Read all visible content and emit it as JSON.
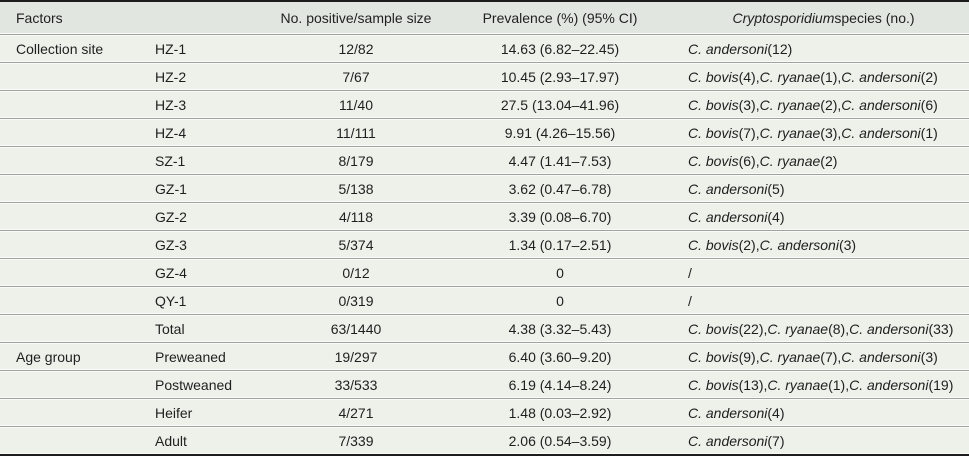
{
  "table": {
    "header": {
      "factors": "Factors",
      "no_positive": "No. positive/sample size",
      "prevalence": "Prevalence (%) (95% CI)",
      "species_italic": "Cryptosporidium",
      "species_rest": " species (no.)"
    },
    "rows": [
      {
        "factor": "Collection site",
        "level": "HZ-1",
        "positive": "12/82",
        "prevalence": "14.63 (6.82–22.45)",
        "species": "C. andersoni (12)"
      },
      {
        "factor": "",
        "level": "HZ-2",
        "positive": "7/67",
        "prevalence": "10.45 (2.93–17.97)",
        "species": "C. bovis (4), C. ryanae (1), C. andersoni (2)"
      },
      {
        "factor": "",
        "level": "HZ-3",
        "positive": "11/40",
        "prevalence": "27.5 (13.04–41.96)",
        "species": "C. bovis (3), C. ryanae (2), C. andersoni (6)"
      },
      {
        "factor": "",
        "level": "HZ-4",
        "positive": "11/111",
        "prevalence": "9.91 (4.26–15.56)",
        "species": "C. bovis (7), C. ryanae (3), C. andersoni (1)"
      },
      {
        "factor": "",
        "level": "SZ-1",
        "positive": "8/179",
        "prevalence": "4.47 (1.41–7.53)",
        "species": "C. bovis (6), C. ryanae (2)"
      },
      {
        "factor": "",
        "level": "GZ-1",
        "positive": "5/138",
        "prevalence": "3.62 (0.47–6.78)",
        "species": "C. andersoni (5)"
      },
      {
        "factor": "",
        "level": "GZ-2",
        "positive": "4/118",
        "prevalence": "3.39 (0.08–6.70)",
        "species": "C. andersoni (4)"
      },
      {
        "factor": "",
        "level": "GZ-3",
        "positive": "5/374",
        "prevalence": "1.34 (0.17–2.51)",
        "species": "C. bovis (2), C. andersoni (3)"
      },
      {
        "factor": "",
        "level": "GZ-4",
        "positive": "0/12",
        "prevalence": "0",
        "species": "/"
      },
      {
        "factor": "",
        "level": "QY-1",
        "positive": "0/319",
        "prevalence": "0",
        "species": "/"
      },
      {
        "factor": "",
        "level": "Total",
        "positive": "63/1440",
        "prevalence": "4.38 (3.32–5.43)",
        "species": "C. bovis (22), C. ryanae (8), C. andersoni (33)"
      },
      {
        "factor": "Age group",
        "level": "Preweaned",
        "positive": "19/297",
        "prevalence": "6.40 (3.60–9.20)",
        "species": "C. bovis (9), C. ryanae (7), C. andersoni (3)"
      },
      {
        "factor": "",
        "level": "Postweaned",
        "positive": "33/533",
        "prevalence": "6.19 (4.14–8.24)",
        "species": "C. bovis (13), C. ryanae (1), C. andersoni (19)"
      },
      {
        "factor": "",
        "level": "Heifer",
        "positive": "4/271",
        "prevalence": "1.48 (0.03–2.92)",
        "species": "C. andersoni (4)"
      },
      {
        "factor": "",
        "level": "Adult",
        "positive": "7/339",
        "prevalence": "2.06 (0.54–3.59)",
        "species": "C. andersoni (7)"
      }
    ],
    "colors": {
      "header_bg": "#e1e7e0",
      "row_bg": "#edf1ea",
      "rule_grey": "#9da29c",
      "border_black": "#1c1c1c"
    }
  }
}
